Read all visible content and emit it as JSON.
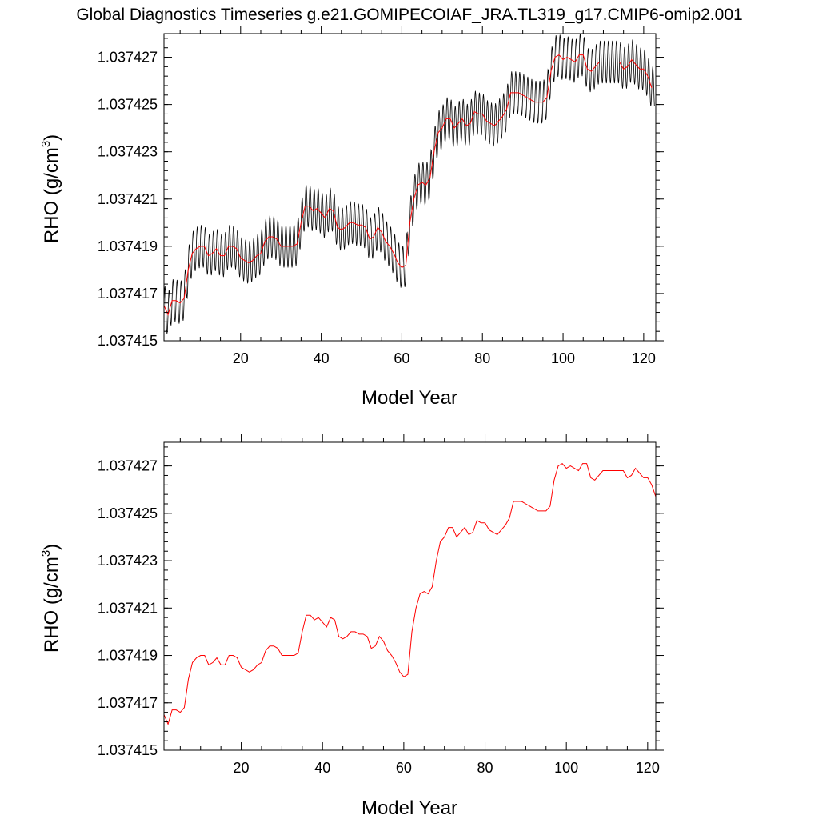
{
  "figure": {
    "title": "Global Diagnostics Timeseries g.e21.GOMIPECOIAF_JRA.TL319_g17.CMIP6-omip2.001"
  },
  "colors": {
    "monthly": "#000000",
    "annual": "#ff0000",
    "axes": "#000000",
    "background": "#ffffff"
  },
  "chart_data": [
    {
      "type": "line",
      "xlabel": "Model Year",
      "ylabel": "RHO (g/cm",
      "ylabel_superscript": "3",
      "ylabel_suffix": ")",
      "xlim": [
        1,
        123
      ],
      "ylim": [
        1.037415,
        1.037428
      ],
      "xticks": [
        20,
        40,
        60,
        80,
        100,
        120
      ],
      "xtick_labels": [
        "20",
        "40",
        "60",
        "80",
        "100",
        "120"
      ],
      "yticks": [
        1.037415,
        1.037417,
        1.037419,
        1.037421,
        1.037423,
        1.037425,
        1.037427
      ],
      "ytick_labels": [
        "1.037415",
        "1.037417",
        "1.037419",
        "1.037421",
        "1.037423",
        "1.037425",
        "1.037427"
      ],
      "grid": false,
      "series": [
        {
          "id": "monthly",
          "color": "#000000",
          "resolution": "monthly",
          "range_min": 1.037415,
          "range_max": 1.037428
        },
        {
          "id": "annual",
          "color": "#ff0000",
          "resolution": "annual"
        }
      ]
    },
    {
      "type": "line",
      "xlabel": "Model Year",
      "ylabel": "RHO (g/cm",
      "ylabel_superscript": "3",
      "ylabel_suffix": ")",
      "xlim": [
        1,
        122
      ],
      "ylim": [
        1.037415,
        1.037428
      ],
      "xticks": [
        20,
        40,
        60,
        80,
        100,
        120
      ],
      "xtick_labels": [
        "20",
        "40",
        "60",
        "80",
        "100",
        "120"
      ],
      "yticks": [
        1.037415,
        1.037417,
        1.037419,
        1.037421,
        1.037423,
        1.037425,
        1.037427
      ],
      "ytick_labels": [
        "1.037415",
        "1.037417",
        "1.037419",
        "1.037421",
        "1.037423",
        "1.037425",
        "1.037427"
      ],
      "grid": false,
      "series": [
        {
          "id": "annual",
          "color": "#ff0000",
          "resolution": "annual"
        }
      ]
    }
  ],
  "annual_mean": {
    "x": [
      1,
      2,
      3,
      4,
      5,
      6,
      7,
      8,
      9,
      10,
      11,
      12,
      13,
      14,
      15,
      16,
      17,
      18,
      19,
      20,
      21,
      22,
      23,
      24,
      25,
      26,
      27,
      28,
      29,
      30,
      31,
      32,
      33,
      34,
      35,
      36,
      37,
      38,
      39,
      40,
      41,
      42,
      43,
      44,
      45,
      46,
      47,
      48,
      49,
      50,
      51,
      52,
      53,
      54,
      55,
      56,
      57,
      58,
      59,
      60,
      61,
      62,
      63,
      64,
      65,
      66,
      67,
      68,
      69,
      70,
      71,
      72,
      73,
      74,
      75,
      76,
      77,
      78,
      79,
      80,
      81,
      82,
      83,
      84,
      85,
      86,
      87,
      88,
      89,
      90,
      91,
      92,
      93,
      94,
      95,
      96,
      97,
      98,
      99,
      100,
      101,
      102,
      103,
      104,
      105,
      106,
      107,
      108,
      109,
      110,
      111,
      112,
      113,
      114,
      115,
      116,
      117,
      118,
      119,
      120,
      121,
      122
    ],
    "y": [
      1.0374165,
      1.0374161,
      1.0374167,
      1.0374167,
      1.0374166,
      1.0374168,
      1.037418,
      1.0374187,
      1.0374189,
      1.037419,
      1.037419,
      1.0374186,
      1.0374187,
      1.0374189,
      1.0374186,
      1.0374186,
      1.037419,
      1.037419,
      1.0374189,
      1.0374185,
      1.0374184,
      1.0374183,
      1.0374184,
      1.0374186,
      1.0374187,
      1.0374192,
      1.0374194,
      1.0374194,
      1.0374193,
      1.037419,
      1.037419,
      1.037419,
      1.037419,
      1.0374191,
      1.03742,
      1.0374207,
      1.0374207,
      1.0374205,
      1.0374206,
      1.0374204,
      1.0374202,
      1.0374206,
      1.0374205,
      1.0374198,
      1.0374197,
      1.0374198,
      1.03742,
      1.03742,
      1.0374199,
      1.0374199,
      1.0374198,
      1.0374193,
      1.0374194,
      1.0374198,
      1.0374196,
      1.0374192,
      1.037419,
      1.0374187,
      1.0374183,
      1.0374181,
      1.0374182,
      1.03742,
      1.037421,
      1.0374216,
      1.0374217,
      1.0374216,
      1.0374219,
      1.037423,
      1.0374238,
      1.037424,
      1.0374244,
      1.0374244,
      1.037424,
      1.0374242,
      1.0374244,
      1.0374241,
      1.0374242,
      1.0374247,
      1.0374246,
      1.0374246,
      1.0374243,
      1.0374242,
      1.0374241,
      1.0374243,
      1.0374245,
      1.0374248,
      1.0374255,
      1.0374255,
      1.0374255,
      1.0374254,
      1.0374253,
      1.0374252,
      1.0374251,
      1.0374251,
      1.0374251,
      1.0374253,
      1.0374264,
      1.037427,
      1.0374271,
      1.0374269,
      1.037427,
      1.0374269,
      1.0374268,
      1.0374271,
      1.0374271,
      1.0374265,
      1.0374264,
      1.0374266,
      1.0374268,
      1.0374268,
      1.0374268,
      1.0374268,
      1.0374268,
      1.0374268,
      1.0374265,
      1.0374266,
      1.0374269,
      1.0374267,
      1.0374265,
      1.0374265,
      1.0374262,
      1.0374257
    ]
  },
  "monthly_amplitude": 9e-07
}
